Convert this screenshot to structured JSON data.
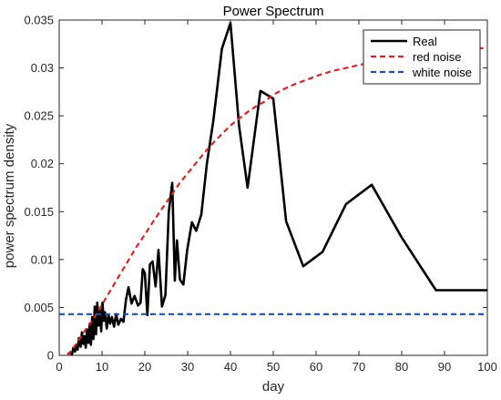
{
  "chart_data": {
    "type": "line",
    "title": "Power Spectrum",
    "xlabel": "day",
    "ylabel": "power spectrum density",
    "xlim": [
      0,
      100
    ],
    "ylim": [
      0,
      0.035
    ],
    "xticks": [
      0,
      10,
      20,
      30,
      40,
      50,
      60,
      70,
      80,
      90,
      100
    ],
    "yticks": [
      0,
      0.005,
      0.01,
      0.015,
      0.02,
      0.025,
      0.03,
      0.035
    ],
    "ytick_labels": [
      "0",
      "0.005",
      "0.01",
      "0.015",
      "0.02",
      "0.025",
      "0.03",
      "0.035"
    ],
    "grid": false,
    "legend_position": "top-right",
    "series": [
      {
        "name": "Real",
        "color": "#000000",
        "style": "solid",
        "x": [
          2,
          2.5,
          3,
          3.3,
          3.7,
          4,
          4.3,
          4.6,
          5,
          5.3,
          5.6,
          5.9,
          6.2,
          6.5,
          6.8,
          7.1,
          7.4,
          7.7,
          8,
          8.3,
          8.6,
          8.9,
          9.2,
          9.5,
          9.8,
          10.1,
          10.4,
          10.7,
          11.1,
          11.5,
          11.9,
          12.3,
          12.8,
          13.3,
          13.8,
          14.4,
          15,
          15.6,
          16.2,
          16.9,
          17.6,
          18.4,
          19,
          19.5,
          20,
          20.6,
          21.2,
          21.8,
          22.5,
          23.2,
          24,
          24.8,
          25.6,
          26.4,
          27,
          27.5,
          28.2,
          29,
          29.9,
          31,
          32,
          33.2,
          34.5,
          36,
          38,
          40,
          42,
          44,
          47,
          50,
          53,
          57,
          61.5,
          67,
          73,
          80,
          88,
          100
        ],
        "values": [
          0.0001,
          0.0003,
          0.0001,
          0.0008,
          0.0004,
          0.0011,
          0.0006,
          0.0018,
          0.0009,
          0.0024,
          0.0012,
          0.002,
          0.0008,
          0.0027,
          0.0013,
          0.0033,
          0.0011,
          0.004,
          0.0017,
          0.0051,
          0.0022,
          0.0055,
          0.0031,
          0.0047,
          0.0025,
          0.0055,
          0.0036,
          0.0045,
          0.0028,
          0.0042,
          0.0033,
          0.004,
          0.003,
          0.0043,
          0.0032,
          0.0038,
          0.0035,
          0.0058,
          0.0071,
          0.0054,
          0.0062,
          0.0052,
          0.0055,
          0.009,
          0.0086,
          0.0042,
          0.0095,
          0.0098,
          0.0072,
          0.011,
          0.0051,
          0.0063,
          0.015,
          0.018,
          0.0078,
          0.012,
          0.0079,
          0.0074,
          0.011,
          0.0139,
          0.013,
          0.0147,
          0.02,
          0.0245,
          0.032,
          0.0347,
          0.024,
          0.0175,
          0.0276,
          0.0268,
          0.014,
          0.0093,
          0.0108,
          0.0158,
          0.0178,
          0.0123,
          0.0068,
          0.0068
        ]
      },
      {
        "name": "red noise",
        "color": "#d62728",
        "style": "dashed",
        "x": [
          2,
          4,
          6,
          8,
          10,
          12,
          14,
          16,
          18,
          20,
          22,
          24,
          26,
          28,
          30,
          32,
          34,
          36,
          38,
          40,
          42,
          44,
          46,
          48,
          50,
          52,
          55,
          58,
          61,
          64,
          67,
          70,
          73,
          76,
          79,
          82,
          85,
          88,
          91,
          94,
          97,
          100
        ],
        "values": [
          0.0,
          0.0012,
          0.0026,
          0.0038,
          0.0053,
          0.0068,
          0.0083,
          0.0098,
          0.0113,
          0.0126,
          0.014,
          0.0153,
          0.0166,
          0.0179,
          0.019,
          0.0201,
          0.0212,
          0.0222,
          0.0231,
          0.024,
          0.0247,
          0.0254,
          0.026,
          0.0265,
          0.0272,
          0.0277,
          0.0283,
          0.0288,
          0.0293,
          0.0297,
          0.03,
          0.0303,
          0.0306,
          0.0308,
          0.031,
          0.0313,
          0.0315,
          0.0317,
          0.0318,
          0.0319,
          0.032,
          0.0321
        ]
      },
      {
        "name": "white noise",
        "color": "#1f4fa8",
        "style": "dashed",
        "x": [
          0,
          100
        ],
        "values": [
          0.0043,
          0.0043
        ]
      }
    ]
  }
}
